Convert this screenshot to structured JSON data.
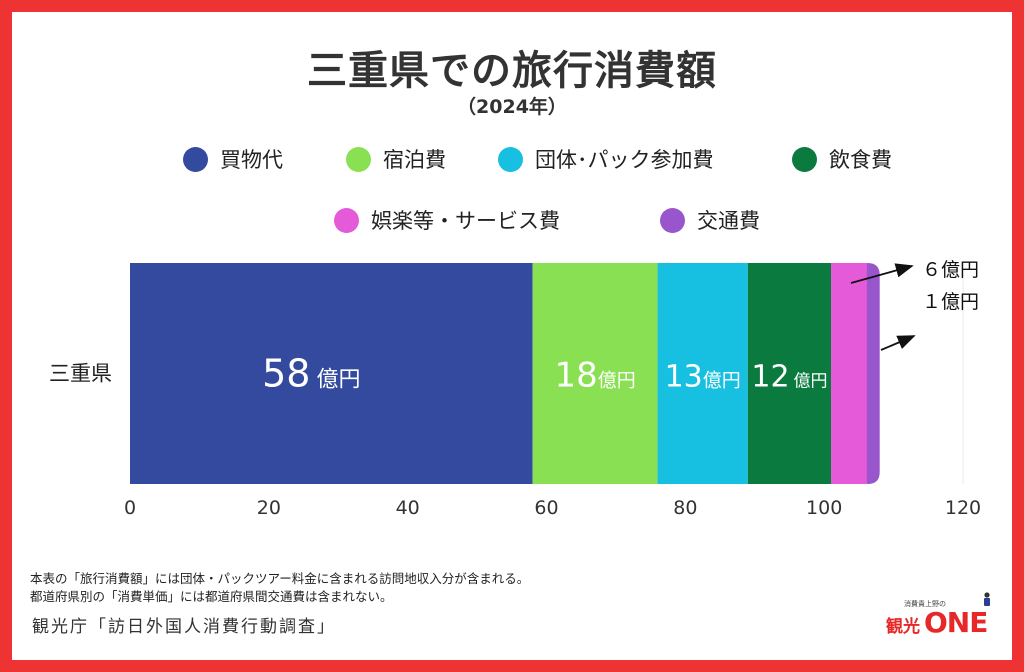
{
  "title": "三重県での旅行消費額",
  "subtitle": "（2024年）",
  "legend": [
    {
      "label": "買物代",
      "color": "#344a9f"
    },
    {
      "label": "宿泊費",
      "color": "#88e052"
    },
    {
      "label": "団体･パック参加費",
      "color": "#17c0e0"
    },
    {
      "label": "飲食費",
      "color": "#0a7a3e"
    },
    {
      "label": "娯楽等・サービス費",
      "color": "#e55ad8"
    },
    {
      "label": "交通費",
      "color": "#9955cc"
    }
  ],
  "chart_data": {
    "type": "bar",
    "orientation": "horizontal",
    "stacked": true,
    "categories": [
      "三重県"
    ],
    "series": [
      {
        "name": "買物代",
        "values": [
          58
        ],
        "label": "58 億円",
        "color": "#344a9f"
      },
      {
        "name": "宿泊費",
        "values": [
          18
        ],
        "label": "18億円",
        "color": "#88e052"
      },
      {
        "name": "団体･パック参加費",
        "values": [
          13
        ],
        "label": "13億円",
        "color": "#17c0e0"
      },
      {
        "name": "飲食費",
        "values": [
          12
        ],
        "label": "12 億円",
        "color": "#0a7a3e"
      },
      {
        "name": "娯楽等・サービス費",
        "values": [
          6
        ],
        "label": "６億円",
        "color": "#e55ad8"
      },
      {
        "name": "交通費",
        "values": [
          1
        ],
        "label": "１億円",
        "color": "#9955cc"
      }
    ],
    "xlim": [
      0,
      120
    ],
    "xticks": [
      "0",
      "20",
      "40",
      "60",
      "80",
      "100",
      "120"
    ],
    "grid": false,
    "legend_position": "top"
  },
  "notes": [
    "本表の「旅行消費額」には団体・パックツアー料金に含まれる訪問地収入分が含まれる。",
    "都道府県別の「消費単価」には都道府県間交通費は含まれない。"
  ],
  "source": "観光庁「訪日外国人消費行動調査」",
  "logo": {
    "tagline": "消費貴上野の",
    "kanko": "観光",
    "one": "ONE"
  }
}
